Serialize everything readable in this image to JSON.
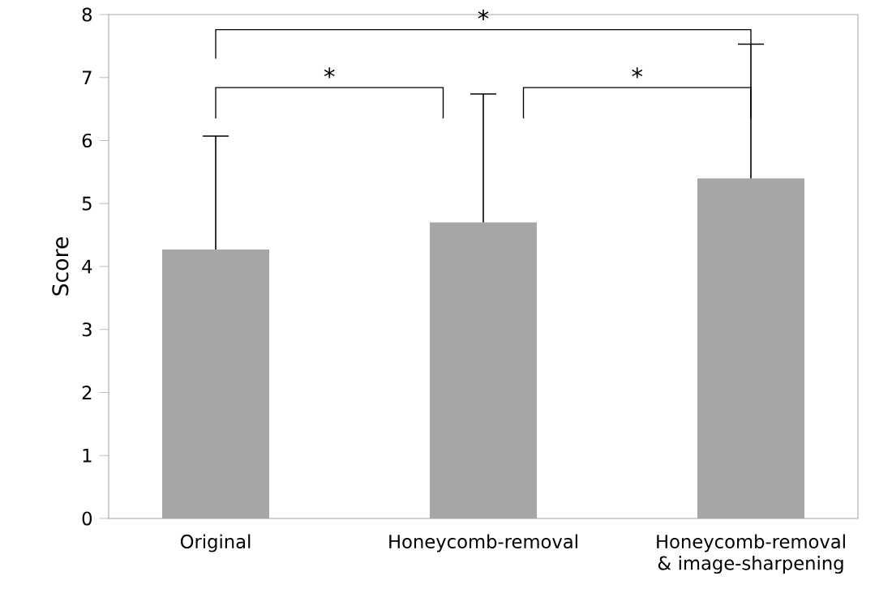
{
  "chart_data": {
    "type": "bar",
    "ylabel": "Score",
    "categories": [
      "Original",
      "Honeycomb-removal",
      "Honeycomb-removal & image-sharpening"
    ],
    "values": [
      4.27,
      4.7,
      5.4
    ],
    "color": "#a6a6a6",
    "errors": [
      [
        4.27,
        6.07
      ],
      [
        4.7,
        6.74
      ],
      [
        5.4,
        7.53
      ]
    ],
    "ylim": [
      0,
      8
    ],
    "yticks": [
      0,
      1,
      2,
      3,
      4,
      5,
      6,
      7,
      8
    ],
    "grid": false,
    "annotations": [
      "*",
      "*",
      "*"
    ]
  }
}
